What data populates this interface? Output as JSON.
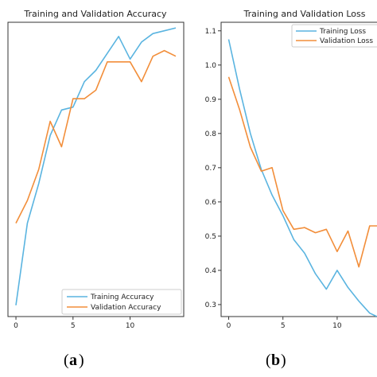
{
  "colors": {
    "training": "#5ab4e0",
    "validation": "#f28e3a",
    "axis": "#333333",
    "legend_border": "#cccccc"
  },
  "chart_data": [
    {
      "type": "line",
      "title": "Training and Validation Accuracy",
      "caption_letter": "a",
      "xlim": [
        -0.7,
        14.7
      ],
      "ylim": [
        0.445,
        0.965
      ],
      "xticks": [
        0,
        5,
        10
      ],
      "yticks": [],
      "legend_position": "lower-right",
      "series": [
        {
          "name": "Training Accuracy",
          "color_key": "training",
          "x": [
            0,
            1,
            2,
            3,
            4,
            5,
            6,
            7,
            8,
            9,
            10,
            11,
            12,
            13,
            14
          ],
          "y": [
            0.465,
            0.61,
            0.68,
            0.765,
            0.81,
            0.815,
            0.86,
            0.88,
            0.91,
            0.94,
            0.9,
            0.93,
            0.945,
            0.95,
            0.955
          ]
        },
        {
          "name": "Validation Accuracy",
          "color_key": "validation",
          "x": [
            0,
            1,
            2,
            3,
            4,
            5,
            6,
            7,
            8,
            9,
            10,
            11,
            12,
            13,
            14
          ],
          "y": [
            0.61,
            0.65,
            0.705,
            0.79,
            0.745,
            0.83,
            0.83,
            0.845,
            0.895,
            0.895,
            0.895,
            0.86,
            0.905,
            0.915,
            0.905
          ]
        }
      ]
    },
    {
      "type": "line",
      "title": "Training and Validation Loss",
      "caption_letter": "b",
      "xlim": [
        -0.7,
        14.7
      ],
      "ylim": [
        0.265,
        1.125
      ],
      "xticks": [
        0,
        5,
        10
      ],
      "xtick_labels": [
        "0",
        "5",
        "10"
      ],
      "yticks": [
        0.3,
        0.4,
        0.5,
        0.6,
        0.7,
        0.8,
        0.9,
        1.0,
        1.1
      ],
      "ytick_labels": [
        "0.3",
        "0.4",
        "0.5",
        "0.6",
        "0.7",
        "0.8",
        "0.9",
        "1.0",
        "1.1"
      ],
      "legend_position": "upper-right",
      "series": [
        {
          "name": "Training Loss",
          "color_key": "training",
          "x": [
            0,
            1,
            2,
            3,
            4,
            5,
            6,
            7,
            8,
            9,
            10,
            11,
            12,
            13,
            14
          ],
          "y": [
            1.075,
            0.93,
            0.8,
            0.695,
            0.62,
            0.56,
            0.49,
            0.45,
            0.39,
            0.345,
            0.4,
            0.35,
            0.31,
            0.275,
            0.26
          ]
        },
        {
          "name": "Validation Loss",
          "color_key": "validation",
          "x": [
            0,
            1,
            2,
            3,
            4,
            5,
            6,
            7,
            8,
            9,
            10,
            11,
            12,
            13,
            14
          ],
          "y": [
            0.965,
            0.87,
            0.76,
            0.69,
            0.7,
            0.575,
            0.52,
            0.525,
            0.51,
            0.52,
            0.455,
            0.515,
            0.41,
            0.53,
            0.53
          ]
        }
      ]
    }
  ]
}
